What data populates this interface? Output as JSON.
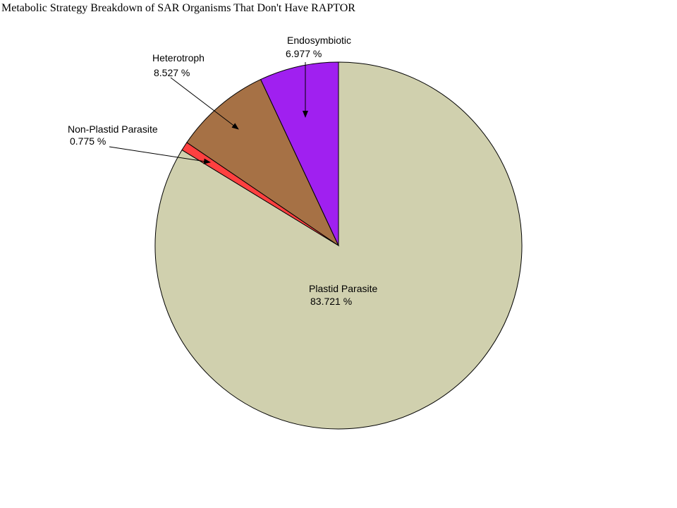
{
  "chart_data": {
    "type": "pie",
    "title": "Metabolic Strategy Breakdown of SAR Organisms That Don't Have RAPTOR",
    "slices": [
      {
        "label": "Plastid Parasite",
        "percent_label": "83.721 %",
        "value": 83.721,
        "color": "#d0d0ae"
      },
      {
        "label": "Non-Plastid Parasite",
        "percent_label": "0.775 %",
        "value": 0.775,
        "color": "#ff4040"
      },
      {
        "label": "Heterotroph",
        "percent_label": "8.527 %",
        "value": 8.527,
        "color": "#a67145"
      },
      {
        "label": "Endosymbiotic",
        "percent_label": "6.977 %",
        "value": 6.977,
        "color": "#a020f0"
      }
    ]
  }
}
